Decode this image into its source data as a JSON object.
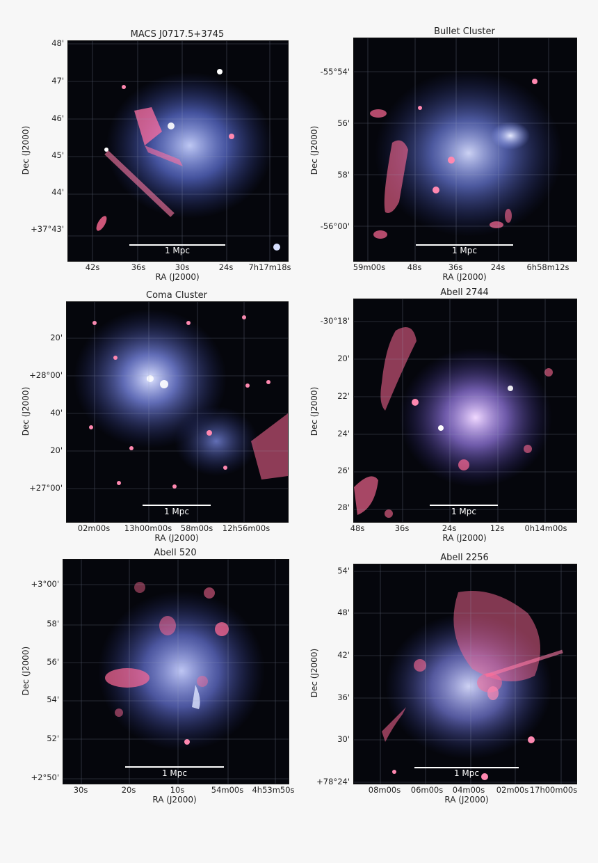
{
  "panels": [
    {
      "title": "MACS J0717.5+3745",
      "ylabel": "Dec (J2000)",
      "xlabel": "RA (J2000)",
      "scalebar": "1 Mpc",
      "yticks": [
        "48'",
        "47'",
        "46'",
        "45'",
        "44'",
        "+37°43'"
      ],
      "xticks": [
        "42s",
        "36s",
        "30s",
        "24s",
        "7h17m18s"
      ]
    },
    {
      "title": "Bullet Cluster",
      "ylabel": "Dec (J2000)",
      "xlabel": "RA (J2000)",
      "scalebar": "1 Mpc",
      "yticks": [
        "-55°54'",
        "56'",
        "58'",
        "-56°00'"
      ],
      "xticks": [
        "59m00s",
        "48s",
        "36s",
        "24s",
        "6h58m12s"
      ]
    },
    {
      "title": "Coma Cluster",
      "ylabel": "Dec (J2000)",
      "xlabel": "RA (J2000)",
      "scalebar": "1 Mpc",
      "yticks": [
        "20'",
        "+28°00'",
        "40'",
        "20'",
        "+27°00'"
      ],
      "xticks": [
        "02m00s",
        "13h00m00s",
        "58m00s",
        "12h56m00s"
      ]
    },
    {
      "title": "Abell 2744",
      "ylabel": "Dec (J2000)",
      "xlabel": "RA (J2000)",
      "scalebar": "1 Mpc",
      "yticks": [
        "-30°18'",
        "20'",
        "22'",
        "24'",
        "26'",
        "28'"
      ],
      "xticks": [
        "48s",
        "36s",
        "24s",
        "12s",
        "0h14m00s"
      ]
    },
    {
      "title": "Abell 520",
      "ylabel": "Dec (J2000)",
      "xlabel": "RA (J2000)",
      "scalebar": "1 Mpc",
      "yticks": [
        "+3°00'",
        "58'",
        "56'",
        "54'",
        "52'",
        "+2°50'"
      ],
      "xticks": [
        "30s",
        "20s",
        "10s",
        "54m00s",
        "4h53m50s"
      ]
    },
    {
      "title": "Abell 2256",
      "ylabel": "Dec (J2000)",
      "xlabel": "RA (J2000)",
      "scalebar": "1 Mpc",
      "yticks": [
        "54'",
        "48'",
        "42'",
        "36'",
        "30'",
        "+78°24'"
      ],
      "xticks": [
        "08m00s",
        "06m00s",
        "04m00s",
        "02m00s",
        "17h00m00s"
      ]
    }
  ],
  "colors": {
    "xray": "#6f86ff",
    "radio": "#ff5c8a",
    "background": "#05060c"
  }
}
